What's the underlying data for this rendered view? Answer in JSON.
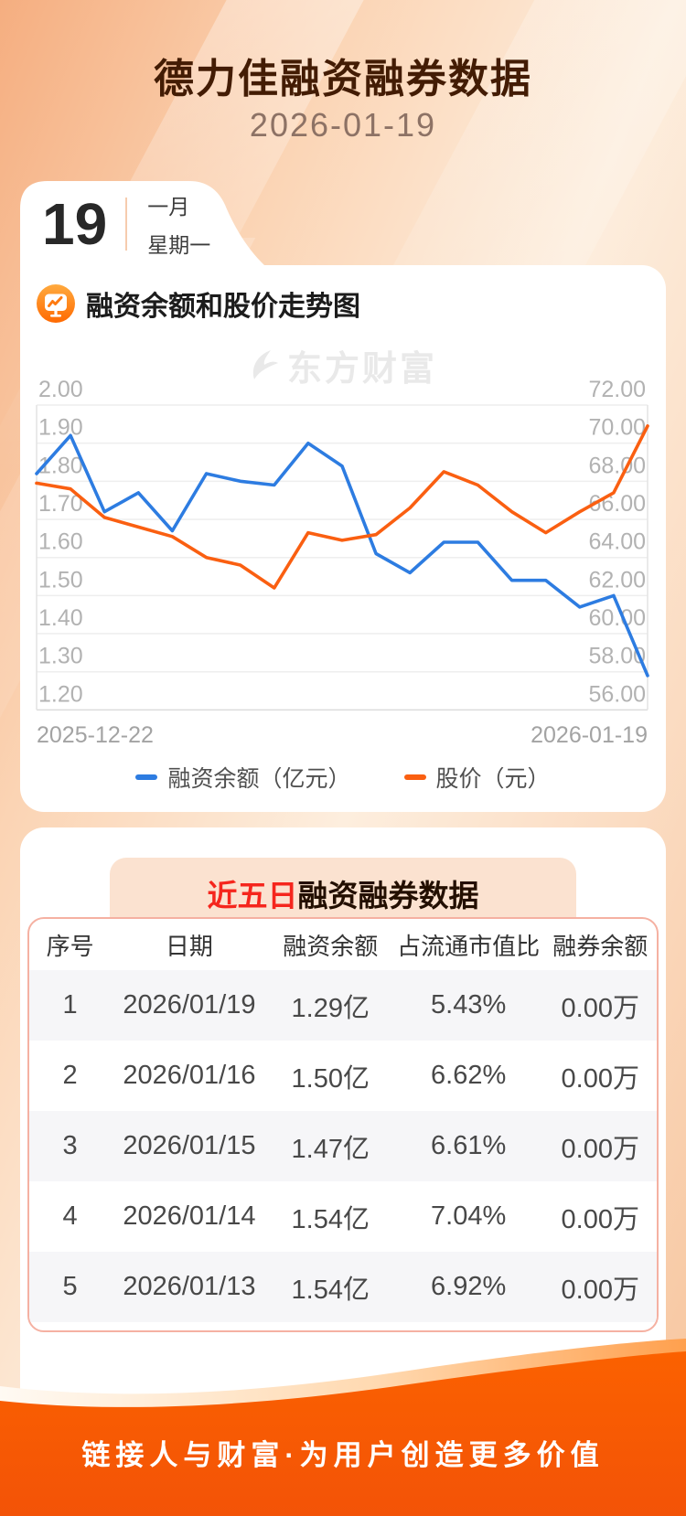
{
  "header": {
    "title": "德力佳融资融券数据",
    "date": "2026-01-19"
  },
  "calendar": {
    "day": "19",
    "month": "一月",
    "weekday": "星期一"
  },
  "chart_section": {
    "title": "融资余额和股价走势图"
  },
  "watermark": {
    "text": "东方财富"
  },
  "chart_data": {
    "type": "line",
    "title": "融资余额和股价走势图",
    "x_start_label": "2025-12-22",
    "x_end_label": "2026-01-19",
    "grid": true,
    "legend_position": "bottom",
    "left_axis": {
      "min": 1.2,
      "max": 2.0,
      "ticks": [
        "2.00",
        "1.90",
        "1.80",
        "1.70",
        "1.60",
        "1.50",
        "1.40",
        "1.30",
        "1.20"
      ]
    },
    "right_axis": {
      "min": 56.0,
      "max": 72.0,
      "ticks": [
        "72.00",
        "70.00",
        "68.00",
        "66.00",
        "64.00",
        "62.00",
        "60.00",
        "58.00",
        "56.00"
      ]
    },
    "series": [
      {
        "name": "融资余额（亿元）",
        "axis": "left",
        "color": "#2d7ce1",
        "values": [
          1.82,
          1.92,
          1.72,
          1.77,
          1.67,
          1.82,
          1.8,
          1.79,
          1.9,
          1.84,
          1.61,
          1.56,
          1.64,
          1.64,
          1.54,
          1.54,
          1.47,
          1.5,
          1.29
        ]
      },
      {
        "name": "股价（元）",
        "axis": "right",
        "color": "#fa5f11",
        "values": [
          67.9,
          67.6,
          66.1,
          65.6,
          65.1,
          64.0,
          63.6,
          62.4,
          65.3,
          64.9,
          65.2,
          66.6,
          68.5,
          67.8,
          66.4,
          65.3,
          66.4,
          67.4,
          70.9
        ]
      }
    ]
  },
  "table_section": {
    "title_highlight": "近五日",
    "title_rest": "融资融券数据",
    "headers": [
      "序号",
      "日期",
      "融资余额",
      "占流通市值比",
      "融券余额"
    ],
    "rows": [
      [
        "1",
        "2026/01/19",
        "1.29亿",
        "5.43%",
        "0.00万"
      ],
      [
        "2",
        "2026/01/16",
        "1.50亿",
        "6.62%",
        "0.00万"
      ],
      [
        "3",
        "2026/01/15",
        "1.47亿",
        "6.61%",
        "0.00万"
      ],
      [
        "4",
        "2026/01/14",
        "1.54亿",
        "7.04%",
        "0.00万"
      ],
      [
        "5",
        "2026/01/13",
        "1.54亿",
        "6.92%",
        "0.00万"
      ]
    ]
  },
  "footer": {
    "slogan": "链接人与财富·为用户创造更多价值"
  },
  "colors": {
    "accent_blue": "#2d7ce1",
    "accent_orange": "#fa5f11",
    "footer_orange": "#f85b03",
    "banner_red": "#f5261d"
  }
}
